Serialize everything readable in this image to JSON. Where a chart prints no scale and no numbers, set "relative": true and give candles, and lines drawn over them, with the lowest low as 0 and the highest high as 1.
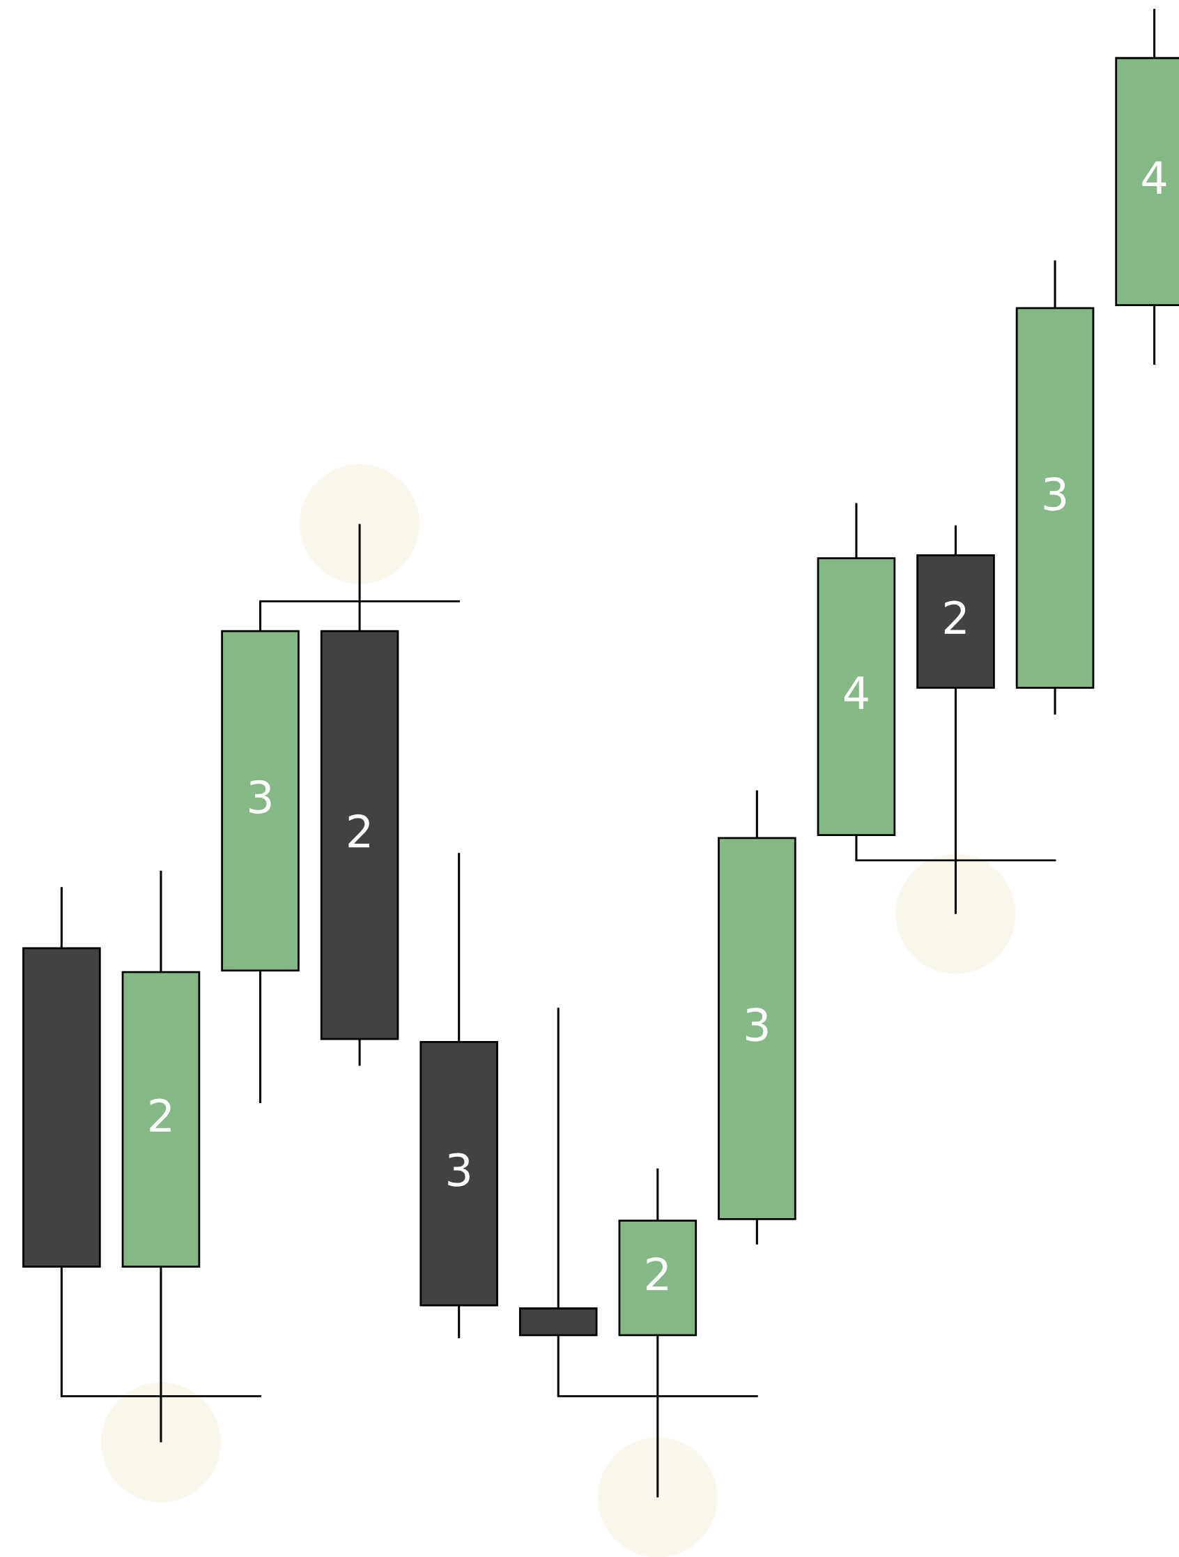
{
  "chart_data": {
    "type": "candlestick",
    "relative": true,
    "categories": [
      null,
      null,
      null,
      null,
      null,
      null,
      null,
      null,
      null,
      null,
      null,
      null
    ],
    "ohlc": [
      [
        0.369,
        0.41,
        0.068,
        0.155
      ],
      [
        0.155,
        0.421,
        0.037,
        0.353
      ],
      [
        0.354,
        0.602,
        0.265,
        0.582
      ],
      [
        0.582,
        0.654,
        0.29,
        0.308
      ],
      [
        0.306,
        0.433,
        0.107,
        0.129
      ],
      [
        0.127,
        0.329,
        0.068,
        0.109
      ],
      [
        0.109,
        0.221,
        0.0,
        0.186
      ],
      [
        0.187,
        0.475,
        0.17,
        0.443
      ],
      [
        0.445,
        0.668,
        0.428,
        0.631
      ],
      [
        0.633,
        0.653,
        0.392,
        0.544
      ],
      [
        0.544,
        0.831,
        0.526,
        0.799
      ],
      [
        0.801,
        1.0,
        0.761,
        0.967
      ]
    ],
    "colors": [
      "#424242",
      "#84b884",
      "#84b884",
      "#424242",
      "#424242",
      "#424242",
      "#84b884",
      "#84b884",
      "#84b884",
      "#424242",
      "#84b884",
      "#84b884"
    ],
    "value_labels": [
      null,
      "2",
      "3",
      "2",
      "3",
      null,
      "2",
      "3",
      "4",
      "2",
      "3",
      "4"
    ]
  }
}
